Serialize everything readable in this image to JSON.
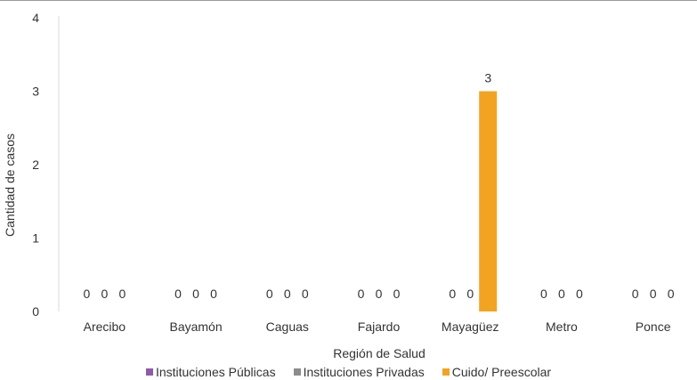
{
  "chart_data": {
    "type": "bar",
    "title": "",
    "xlabel": "Región de Salud",
    "ylabel": "Cantidad de casos",
    "ylim": [
      0,
      4
    ],
    "yticks": [
      "0",
      "1",
      "2",
      "3",
      "4"
    ],
    "grid": false,
    "legend_position": "bottom",
    "categories": [
      "Arecibo",
      "Bayamón",
      "Caguas",
      "Fajardo",
      "Mayagüez",
      "Metro",
      "Ponce"
    ],
    "series": [
      {
        "name": "Instituciones Públicas",
        "color": "#8E5BA8",
        "values": [
          0,
          0,
          0,
          0,
          0,
          0,
          0
        ],
        "labels": [
          "0",
          "0",
          "0",
          "0",
          "0",
          "0",
          "0"
        ]
      },
      {
        "name": "Instituciones Privadas",
        "color": "#8C8C8C",
        "values": [
          0,
          0,
          0,
          0,
          0,
          0,
          0
        ],
        "labels": [
          "0",
          "0",
          "0",
          "0",
          "0",
          "0",
          "0"
        ]
      },
      {
        "name": "Cuido/ Preescolar",
        "color": "#F2A322",
        "values": [
          0,
          0,
          0,
          0,
          3,
          0,
          0
        ],
        "labels": [
          "0",
          "0",
          "0",
          "0",
          "3",
          "0",
          "0"
        ]
      }
    ]
  }
}
